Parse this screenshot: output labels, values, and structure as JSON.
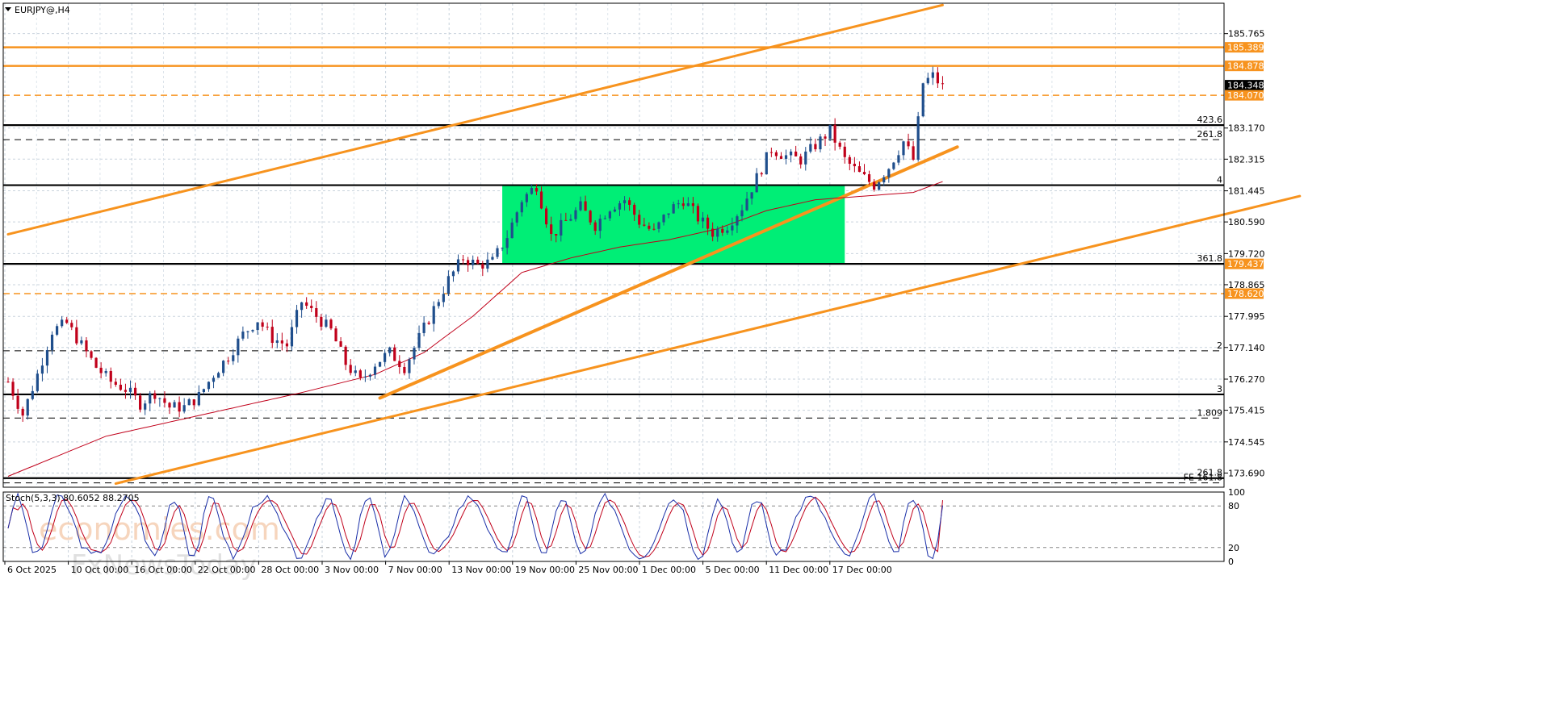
{
  "chart_data": {
    "type": "candlestick",
    "title": "EURJPY@,H4",
    "timeframe": "H4",
    "symbol": "EURJPY",
    "ylim": [
      173.3,
      186.6
    ],
    "grid": true,
    "price_axis_ticks": [
      "185.765",
      "184.878",
      "184.348",
      "184.070",
      "183.170",
      "182.315",
      "181.445",
      "180.590",
      "179.720",
      "178.865",
      "177.995",
      "177.140",
      "176.270",
      "175.415",
      "174.545",
      "173.690"
    ],
    "y_tick_values": [
      185.765,
      183.17,
      182.315,
      181.445,
      180.59,
      179.72,
      178.865,
      177.995,
      177.14,
      176.27,
      175.415,
      174.545,
      173.69
    ],
    "x_tick_labels": [
      "6 Oct 2025",
      "10 Oct 00:00",
      "16 Oct 00:00",
      "22 Oct 00:00",
      "28 Oct 00:00",
      "3 Nov 00:00",
      "7 Nov 00:00",
      "13 Nov 00:00",
      "19 Nov 00:00",
      "25 Nov 00:00",
      "1 Dec 00:00",
      "5 Dec 00:00",
      "11 Dec 00:00",
      "17 Dec 00:00"
    ],
    "price_tags": [
      {
        "label": "185.389",
        "value": 185.389,
        "color": "#f7931e"
      },
      {
        "label": "184.878",
        "value": 184.878,
        "color": "#f7931e"
      },
      {
        "label": "184.348",
        "value": 184.348,
        "color": "#000000"
      },
      {
        "label": "184.070",
        "value": 184.07,
        "color": "#f7931e"
      },
      {
        "label": "179.437",
        "value": 179.437,
        "color": "#f7931e"
      },
      {
        "label": "178.620",
        "value": 178.62,
        "color": "#f7931e"
      }
    ],
    "levels": [
      {
        "value": 185.389,
        "style": "solid",
        "color": "#f7931e",
        "label": ""
      },
      {
        "value": 184.878,
        "style": "solid",
        "color": "#f7931e",
        "label": ""
      },
      {
        "value": 184.07,
        "style": "dashed",
        "color": "#f7931e",
        "label": ""
      },
      {
        "value": 183.25,
        "style": "solid",
        "color": "#000000",
        "label": "423.6"
      },
      {
        "value": 182.85,
        "style": "dashed",
        "color": "#000000",
        "label": "261.8"
      },
      {
        "value": 181.6,
        "style": "solid",
        "color": "#000000",
        "label": "4"
      },
      {
        "value": 179.437,
        "style": "solid",
        "color": "#000000",
        "label": "361.8"
      },
      {
        "value": 178.62,
        "style": "dashed",
        "color": "#f7931e",
        "label": ""
      },
      {
        "value": 177.05,
        "style": "dashed",
        "color": "#000000",
        "label": "2"
      },
      {
        "value": 175.85,
        "style": "solid",
        "color": "#000000",
        "label": "3"
      },
      {
        "value": 175.2,
        "style": "dashed",
        "color": "#000000",
        "label": "1.809"
      },
      {
        "value": 173.55,
        "style": "solid",
        "color": "#000000",
        "label": "261.8"
      },
      {
        "value": 173.42,
        "style": "dashed",
        "color": "#000000",
        "label": "FE 161.8"
      }
    ],
    "price_path": [
      [
        0,
        176.2
      ],
      [
        3,
        175.3
      ],
      [
        6,
        176.4
      ],
      [
        9,
        177.6
      ],
      [
        12,
        177.8
      ],
      [
        15,
        177.2
      ],
      [
        18,
        176.6
      ],
      [
        21,
        176.2
      ],
      [
        24,
        176.0
      ],
      [
        27,
        175.6
      ],
      [
        30,
        175.9
      ],
      [
        33,
        175.5
      ],
      [
        36,
        175.5
      ],
      [
        39,
        175.8
      ],
      [
        42,
        176.4
      ],
      [
        45,
        176.9
      ],
      [
        48,
        177.5
      ],
      [
        51,
        177.9
      ],
      [
        54,
        177.4
      ],
      [
        57,
        177.2
      ],
      [
        60,
        178.4
      ],
      [
        63,
        178.0
      ],
      [
        66,
        177.6
      ],
      [
        69,
        176.7
      ],
      [
        72,
        176.2
      ],
      [
        75,
        176.7
      ],
      [
        78,
        177.0
      ],
      [
        81,
        176.6
      ],
      [
        84,
        177.4
      ],
      [
        87,
        178.2
      ],
      [
        90,
        179.0
      ],
      [
        93,
        179.6
      ],
      [
        96,
        179.4
      ],
      [
        99,
        179.5
      ],
      [
        102,
        180.2
      ],
      [
        105,
        181.2
      ],
      [
        108,
        181.6
      ],
      [
        111,
        180.2
      ],
      [
        114,
        180.6
      ],
      [
        117,
        181.0
      ],
      [
        120,
        180.5
      ],
      [
        123,
        181.0
      ],
      [
        126,
        181.2
      ],
      [
        129,
        180.6
      ],
      [
        132,
        180.3
      ],
      [
        135,
        180.9
      ],
      [
        138,
        181.2
      ],
      [
        141,
        180.7
      ],
      [
        144,
        180.3
      ],
      [
        147,
        180.5
      ],
      [
        150,
        181.0
      ],
      [
        153,
        181.8
      ],
      [
        156,
        182.6
      ],
      [
        159,
        182.4
      ],
      [
        162,
        182.3
      ],
      [
        165,
        182.7
      ],
      [
        168,
        183.1
      ],
      [
        171,
        182.3
      ],
      [
        174,
        181.9
      ],
      [
        177,
        181.6
      ],
      [
        180,
        182.1
      ],
      [
        183,
        182.8
      ],
      [
        185,
        182.3
      ],
      [
        187,
        184.4
      ],
      [
        189,
        184.6
      ],
      [
        191,
        184.3
      ]
    ],
    "ma_path": [
      [
        0,
        173.6
      ],
      [
        20,
        174.7
      ],
      [
        40,
        175.3
      ],
      [
        60,
        175.9
      ],
      [
        75,
        176.4
      ],
      [
        85,
        177.0
      ],
      [
        95,
        178.0
      ],
      [
        105,
        179.2
      ],
      [
        115,
        179.6
      ],
      [
        125,
        179.9
      ],
      [
        135,
        180.1
      ],
      [
        145,
        180.4
      ],
      [
        155,
        180.9
      ],
      [
        165,
        181.2
      ],
      [
        175,
        181.3
      ],
      [
        185,
        181.4
      ],
      [
        191,
        181.7
      ]
    ],
    "x_count": 192,
    "range_box": {
      "x0": 101,
      "x1": 171,
      "y0": 179.437,
      "y1": 181.6,
      "color": "#00ee76"
    },
    "trendlines": [
      {
        "x0": 0,
        "y0": 180.25,
        "x1": 191,
        "y1": 186.55,
        "color": "#f7931e"
      },
      {
        "x0": 22,
        "y0": 173.4,
        "x1": 264,
        "y1": 181.3,
        "color": "#f7931e"
      },
      {
        "x0": 76,
        "y0": 175.75,
        "x1": 194,
        "y1": 182.65,
        "color": "#f7931e"
      }
    ],
    "stochastic": {
      "label": "Stoch(5,3,3) 80.6052 88.2705",
      "main": 80.6052,
      "signal": 88.2705,
      "levels": [
        80,
        20
      ],
      "axis_ticks": [
        "100",
        "80",
        "20",
        "0"
      ],
      "ylim": [
        0,
        100
      ]
    }
  },
  "watermark": {
    "line1": "economies.com",
    "line2": "FxNewsToday"
  },
  "colors": {
    "bull": "#1f4e8c",
    "bear": "#c0001a",
    "accent": "#f7931e",
    "ma": "#c0001a",
    "box": "#00ee76",
    "stoch_main": "#1a2fa8",
    "stoch_signal": "#c0001a"
  }
}
